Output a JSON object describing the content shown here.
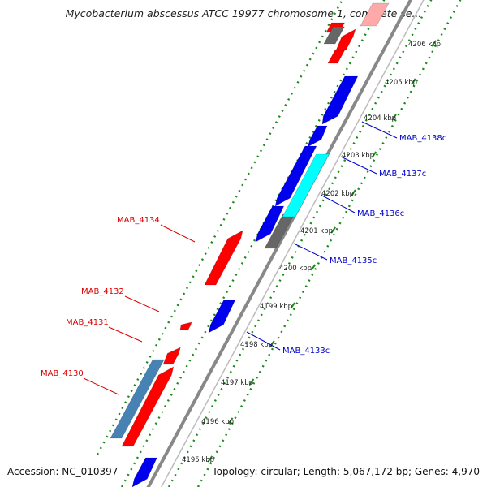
{
  "title": "Mycobacterium abscessus ATCC 19977 chromosome 1, complete se...",
  "footer": {
    "accession": "Accession: NC_010397",
    "summary": "Topology: circular; Length: 5,067,172 bp; Genes: 4,970"
  },
  "ruler_labels": [
    "4195 kbp",
    "4196 kbp",
    "4197 kbp",
    "4198 kbp",
    "4199 kbp",
    "4200 kbp",
    "4201 kbp",
    "4202 kbp",
    "4203 kbp",
    "4204 kbp",
    "4205 kbp",
    "4206 kbp"
  ],
  "gene_labels": {
    "mab_4130": "MAB_4130",
    "mab_4131": "MAB_4131",
    "mab_4132": "MAB_4132",
    "mab_4134": "MAB_4134",
    "mab_4133c": "MAB_4133c",
    "mab_4135c": "MAB_4135c",
    "mab_4136c": "MAB_4136c",
    "mab_4137c": "MAB_4137c",
    "mab_4138c": "MAB_4138c"
  },
  "colors": {
    "forward_gene": "#ff0000",
    "reverse_gene": "#0000ee",
    "highlight_gene": "#00ffff",
    "rna_feature": "#4682b4",
    "pseudo_feature": "#666666",
    "backbone": "#888888",
    "ruler": "#1a8a1a",
    "forward_label": "#dd0000",
    "reverse_label": "#0000cc"
  }
}
